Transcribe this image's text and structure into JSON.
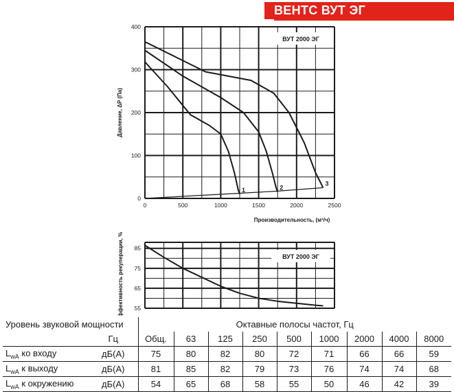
{
  "banner": {
    "title": "ВЕНТС ВУТ ЭГ",
    "color": "#e2231a"
  },
  "chart_data": [
    {
      "type": "line",
      "title": "ВУТ 2000 ЭГ",
      "xlabel": "Производительность, (м³/ч)",
      "ylabel": "Давление, ΔP (Па)",
      "xlim": [
        0,
        2500
      ],
      "ylim": [
        0,
        400
      ],
      "xticks": [
        "0",
        "500",
        "1000",
        "1500",
        "2000",
        "2500"
      ],
      "yticks": [
        "0",
        "100",
        "200",
        "300",
        "400"
      ],
      "grid": true,
      "series": [
        {
          "name": "1",
          "x": [
            0,
            300,
            600,
            850,
            1000,
            1100,
            1180,
            1230,
            1250
          ],
          "y": [
            318,
            260,
            195,
            170,
            150,
            110,
            60,
            20,
            10
          ]
        },
        {
          "name": "2",
          "x": [
            0,
            500,
            1000,
            1300,
            1500,
            1600,
            1680,
            1730,
            1750
          ],
          "y": [
            345,
            285,
            235,
            200,
            155,
            110,
            60,
            25,
            15
          ]
        },
        {
          "name": "3",
          "x": [
            0,
            400,
            800,
            1100,
            1400,
            1700,
            1900,
            2100,
            2250,
            2350
          ],
          "y": [
            365,
            330,
            295,
            285,
            275,
            245,
            200,
            130,
            60,
            25
          ]
        },
        {
          "name": "",
          "x": [
            0,
            1250,
            1750,
            2350
          ],
          "y": [
            0,
            12,
            17,
            25
          ]
        }
      ]
    },
    {
      "type": "line",
      "title": "ВУТ 2000 ЭГ",
      "xlabel": "",
      "ylabel": "эффективность рекуперации, %",
      "xlim": [
        0,
        2500
      ],
      "ylim": [
        55,
        88
      ],
      "yticks": [
        "55",
        "65",
        "75",
        "85"
      ],
      "grid": true,
      "series": [
        {
          "name": "",
          "x": [
            0,
            250,
            500,
            750,
            1000,
            1250,
            1500,
            1750,
            2000,
            2250,
            2350
          ],
          "y": [
            86.5,
            80.5,
            75.0,
            70.5,
            66.0,
            62.5,
            60.0,
            58.5,
            57.5,
            56.5,
            56.2
          ]
        }
      ]
    }
  ],
  "sound_table": {
    "title": "Уровень звуковой мощности",
    "bands_title": "Октавные полосы частот, Гц",
    "unit_header": "Гц",
    "columns": [
      "Общ.",
      "63",
      "125",
      "250",
      "500",
      "1000",
      "2000",
      "4000",
      "8000"
    ],
    "rows": [
      {
        "label_main": "L",
        "label_sub": "wA",
        "label_rest": " ко входу",
        "unit": "дБ(А)",
        "values": [
          "75",
          "80",
          "82",
          "80",
          "72",
          "71",
          "66",
          "66",
          "59"
        ]
      },
      {
        "label_main": "L",
        "label_sub": "wA",
        "label_rest": " к выходу",
        "unit": "дБ(А)",
        "values": [
          "81",
          "85",
          "82",
          "79",
          "73",
          "76",
          "74",
          "74",
          "68"
        ]
      },
      {
        "label_main": "L",
        "label_sub": "wA",
        "label_rest": " к окружению",
        "unit": "дБ(А)",
        "values": [
          "54",
          "65",
          "68",
          "58",
          "55",
          "50",
          "46",
          "42",
          "39"
        ]
      }
    ]
  }
}
